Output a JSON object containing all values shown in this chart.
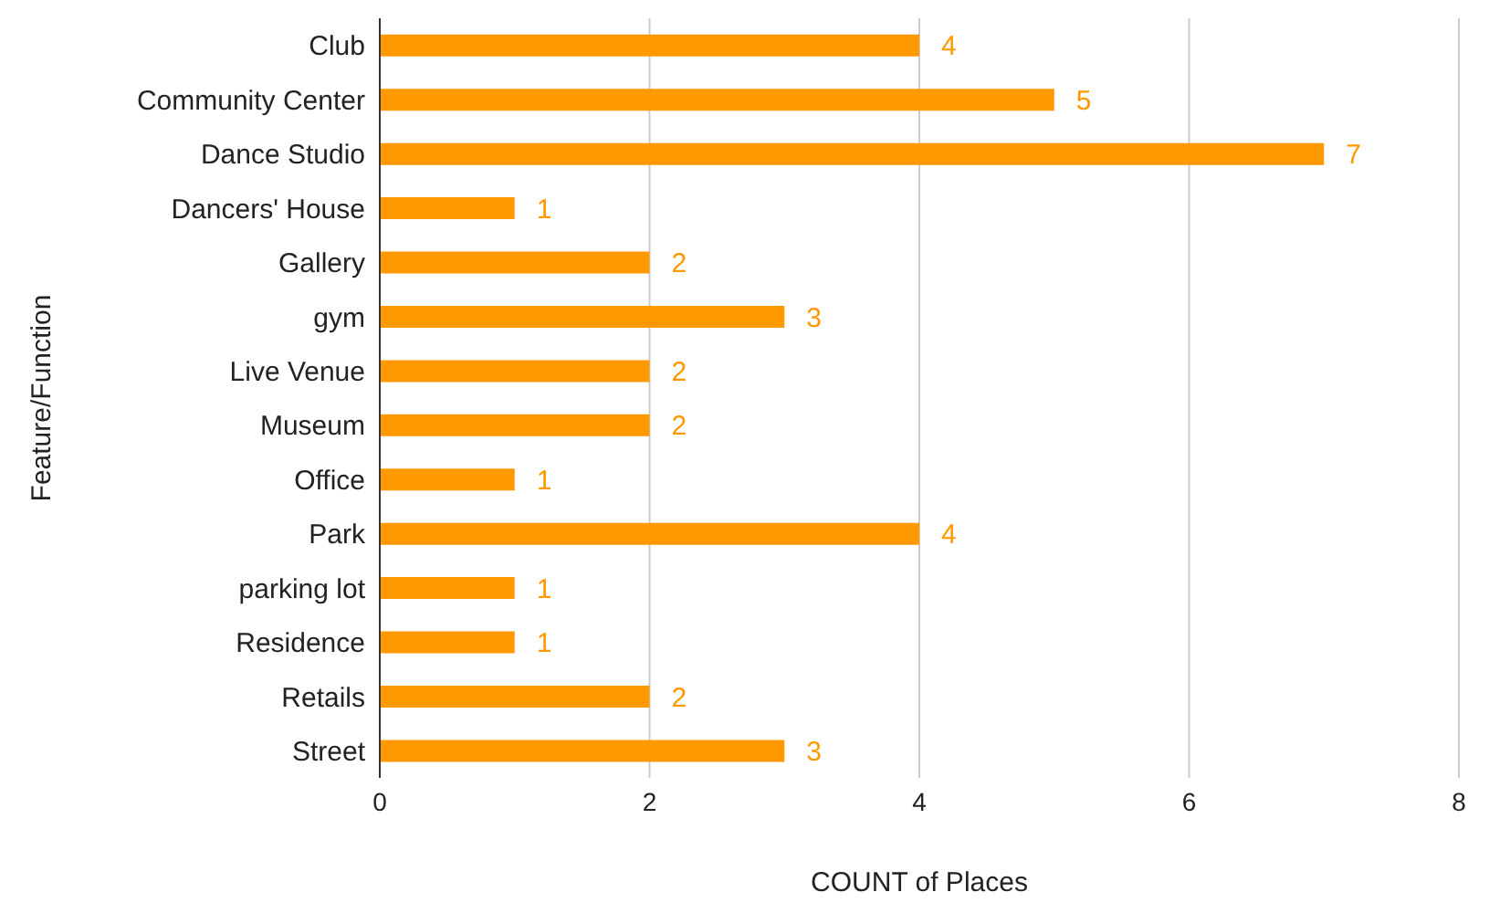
{
  "chart_data": {
    "type": "bar",
    "orientation": "horizontal",
    "xlabel": "COUNT of Places",
    "ylabel": "Feature/Function",
    "categories": [
      "Club",
      "Community Center",
      "Dance Studio",
      "Dancers' House",
      "Gallery",
      "gym",
      "Live Venue",
      "Museum",
      "Office",
      "Park",
      "parking lot",
      "Residence",
      "Retails",
      "Street"
    ],
    "values": [
      4,
      5,
      7,
      1,
      2,
      3,
      2,
      2,
      1,
      4,
      1,
      1,
      2,
      3
    ],
    "color": "#ff9900",
    "xlim": [
      0,
      8
    ],
    "xticks": [
      0,
      2,
      4,
      6,
      8
    ],
    "grid": "x",
    "data_labels": true
  }
}
